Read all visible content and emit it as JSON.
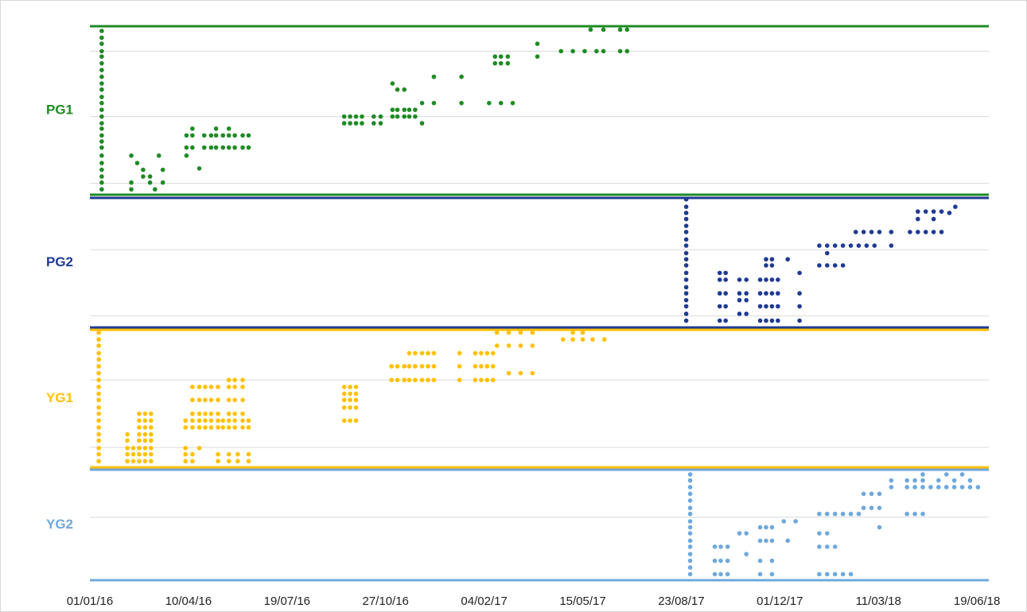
{
  "chart_data": {
    "type": "scatter",
    "xlim": [
      0,
      912
    ],
    "xticks": [
      {
        "value": 0,
        "label": "01/01/16"
      },
      {
        "value": 100,
        "label": "10/04/16"
      },
      {
        "value": 200,
        "label": "19/07/16"
      },
      {
        "value": 300,
        "label": "27/10/16"
      },
      {
        "value": 400,
        "label": "04/02/17"
      },
      {
        "value": 500,
        "label": "15/05/17"
      },
      {
        "value": 600,
        "label": "23/08/17"
      },
      {
        "value": 700,
        "label": "01/12/17"
      },
      {
        "value": 800,
        "label": "11/03/18"
      },
      {
        "value": 900,
        "label": "19/06/18"
      }
    ],
    "grid": true,
    "series": [
      {
        "name": "PG1",
        "color": "#1f8b24",
        "ylim": [
          0,
          25
        ],
        "yticks": [
          1.7,
          11.6,
          21.3
        ],
        "x": [
          12,
          12,
          12,
          12,
          12,
          12,
          12,
          12,
          12,
          12,
          12,
          12,
          12,
          12,
          12,
          12,
          12,
          12,
          12,
          12,
          12,
          12,
          12,
          12,
          12,
          42,
          42,
          42,
          54,
          54,
          61,
          61,
          66,
          70,
          74,
          74,
          48,
          98,
          104,
          116,
          123,
          128,
          135,
          141,
          147,
          155,
          161,
          98,
          104,
          116,
          123,
          128,
          135,
          141,
          147,
          155,
          161,
          104,
          128,
          141,
          98,
          111,
          258,
          264,
          270,
          276,
          288,
          295,
          258,
          264,
          270,
          276,
          288,
          295,
          307,
          312,
          319,
          324,
          330,
          307,
          312,
          319,
          324,
          330,
          312,
          319,
          307,
          337,
          337,
          349,
          349,
          377,
          377,
          411,
          417,
          424,
          411,
          417,
          424,
          405,
          417,
          429,
          454,
          454,
          478,
          490,
          502,
          514,
          521,
          538,
          545,
          508,
          521,
          538,
          545
        ],
        "values": [
          0.8,
          1.8,
          2.7,
          3.7,
          4.7,
          5.8,
          7,
          7.9,
          8.8,
          9.8,
          10.6,
          11.6,
          12.6,
          13.6,
          14.5,
          15.6,
          16.5,
          17.5,
          18.5,
          19.5,
          20.5,
          21.3,
          22.4,
          23.3,
          24.3,
          0.8,
          1.8,
          5.8,
          2.7,
          3.7,
          2.7,
          1.8,
          0.8,
          5.8,
          3.7,
          1.8,
          4.7,
          7,
          7,
          7,
          7,
          7,
          7,
          7,
          7,
          7,
          7,
          8.8,
          8.8,
          8.8,
          8.8,
          8.8,
          8.8,
          8.8,
          8.8,
          8.8,
          8.8,
          9.8,
          9.8,
          9.8,
          5.8,
          3.9,
          10.6,
          10.6,
          10.6,
          10.6,
          10.6,
          10.6,
          11.6,
          11.6,
          11.6,
          11.6,
          11.6,
          11.6,
          11.6,
          11.6,
          11.6,
          11.6,
          11.6,
          12.6,
          12.6,
          12.6,
          12.6,
          12.6,
          15.6,
          15.6,
          16.5,
          13.6,
          10.6,
          13.6,
          17.5,
          13.6,
          17.5,
          19.5,
          19.5,
          19.5,
          20.5,
          20.5,
          20.5,
          13.6,
          13.6,
          13.6,
          20.5,
          22.4,
          21.3,
          21.3,
          21.3,
          21.3,
          21.3,
          21.3,
          21.3,
          24.5,
          24.5,
          24.5,
          24.5
        ]
      },
      {
        "name": "PG2",
        "color": "#1f3a93",
        "ylim": [
          0,
          19
        ],
        "yticks": [
          1.7,
          11.4
        ],
        "x": [
          605,
          605,
          605,
          605,
          605,
          605,
          605,
          605,
          605,
          605,
          605,
          605,
          605,
          605,
          605,
          605,
          605,
          605,
          605,
          639,
          645,
          639,
          645,
          639,
          645,
          639,
          645,
          639,
          645,
          659,
          666,
          659,
          666,
          659,
          666,
          659,
          666,
          680,
          686,
          692,
          698,
          680,
          686,
          692,
          698,
          680,
          686,
          692,
          698,
          680,
          686,
          692,
          698,
          686,
          692,
          686,
          692,
          708,
          720,
          720,
          720,
          720,
          740,
          748,
          756,
          764,
          748,
          740,
          748,
          756,
          764,
          772,
          780,
          788,
          796,
          777,
          785,
          793,
          801,
          813,
          813,
          832,
          840,
          848,
          856,
          864,
          840,
          856,
          840,
          848,
          856,
          864,
          872,
          878
        ],
        "values": [
          1,
          2,
          3.1,
          4,
          5,
          5.9,
          7,
          8,
          9.1,
          10,
          10.9,
          12,
          12.9,
          14,
          14.9,
          15.9,
          16.8,
          17.7,
          18.8,
          1,
          1,
          3.1,
          3.1,
          5,
          5,
          7,
          7,
          8,
          8,
          2,
          2,
          4,
          4,
          5,
          5,
          7,
          7,
          1,
          1,
          1,
          1,
          3.1,
          3.1,
          3.1,
          3.1,
          5,
          5,
          5,
          5,
          7,
          7,
          7,
          7,
          9.1,
          9.1,
          10,
          10,
          10,
          1,
          3.1,
          5,
          8,
          9.1,
          9.1,
          9.1,
          9.1,
          10.9,
          12,
          12,
          12,
          12,
          12,
          12,
          12,
          12,
          14,
          14,
          14,
          14,
          12,
          14,
          14,
          14,
          14,
          14,
          14,
          15.9,
          15.9,
          17,
          17,
          17,
          17,
          16.8,
          17.7
        ]
      },
      {
        "name": "YG1",
        "color": "#ffc000",
        "ylim": [
          0,
          20
        ],
        "yticks": [
          2.9,
          12.7
        ],
        "x": [
          9,
          9,
          9,
          9,
          9,
          9,
          9,
          9,
          9,
          9,
          9,
          9,
          9,
          9,
          9,
          9,
          9,
          9,
          9,
          9,
          38,
          44,
          50,
          56,
          62,
          38,
          44,
          50,
          56,
          62,
          38,
          44,
          50,
          56,
          62,
          38,
          50,
          56,
          62,
          38,
          50,
          56,
          62,
          50,
          56,
          62,
          50,
          56,
          62,
          50,
          56,
          62,
          97,
          104,
          130,
          141,
          150,
          161,
          97,
          104,
          130,
          141,
          150,
          161,
          97,
          111,
          97,
          104,
          111,
          117,
          123,
          130,
          135,
          141,
          147,
          155,
          161,
          97,
          104,
          111,
          117,
          123,
          130,
          135,
          141,
          147,
          155,
          161,
          104,
          111,
          117,
          123,
          130,
          141,
          147,
          155,
          104,
          111,
          117,
          123,
          130,
          141,
          147,
          155,
          104,
          111,
          117,
          123,
          130,
          141,
          147,
          155,
          141,
          147,
          155,
          258,
          264,
          270,
          258,
          264,
          270,
          258,
          264,
          270,
          258,
          264,
          270,
          258,
          264,
          270,
          306,
          312,
          319,
          324,
          330,
          337,
          343,
          349,
          306,
          312,
          319,
          324,
          330,
          337,
          343,
          349,
          324,
          330,
          337,
          343,
          349,
          375,
          391,
          397,
          403,
          409,
          375,
          391,
          397,
          403,
          409,
          375,
          391,
          397,
          403,
          409,
          413,
          425,
          437,
          449,
          413,
          425,
          437,
          449,
          425,
          437,
          449,
          480,
          490,
          500,
          510,
          522,
          490,
          500
        ],
        "values": [
          0.9,
          1.9,
          2.8,
          3.9,
          4.8,
          5.8,
          6.8,
          7.8,
          8.7,
          9.8,
          10.7,
          11.7,
          12.7,
          13.7,
          14.7,
          15.7,
          16.6,
          17.7,
          18.6,
          19.6,
          0.9,
          0.9,
          0.9,
          0.9,
          0.9,
          1.9,
          1.9,
          1.9,
          1.9,
          1.9,
          2.8,
          2.8,
          2.8,
          2.8,
          2.8,
          3.9,
          3.9,
          3.9,
          3.9,
          4.8,
          4.8,
          4.8,
          4.8,
          5.8,
          5.8,
          5.8,
          6.8,
          6.8,
          6.8,
          7.8,
          7.8,
          7.8,
          0.9,
          0.9,
          0.9,
          0.9,
          0.9,
          0.9,
          1.9,
          1.9,
          1.9,
          1.9,
          1.9,
          1.9,
          2.8,
          2.8,
          5.8,
          5.8,
          5.8,
          5.8,
          5.8,
          5.8,
          5.8,
          5.8,
          5.8,
          5.8,
          5.8,
          6.8,
          6.8,
          6.8,
          6.8,
          6.8,
          6.8,
          6.8,
          6.8,
          6.8,
          6.8,
          6.8,
          7.8,
          7.8,
          7.8,
          7.8,
          7.8,
          7.8,
          7.8,
          7.8,
          9.8,
          9.8,
          9.8,
          9.8,
          9.8,
          9.8,
          9.8,
          9.8,
          11.7,
          11.7,
          11.7,
          11.7,
          11.7,
          11.7,
          11.7,
          11.7,
          12.7,
          12.7,
          12.7,
          8.7,
          8.7,
          8.7,
          9.8,
          9.8,
          9.8,
          10.7,
          10.7,
          10.7,
          11.7,
          11.7,
          11.7,
          6.8,
          6.8,
          6.8,
          12.7,
          12.7,
          12.7,
          12.7,
          12.7,
          12.7,
          12.7,
          12.7,
          14.7,
          14.7,
          14.7,
          14.7,
          14.7,
          14.7,
          14.7,
          14.7,
          16.6,
          16.6,
          16.6,
          16.6,
          16.6,
          12.7,
          12.7,
          12.7,
          12.7,
          12.7,
          14.7,
          14.7,
          14.7,
          14.7,
          14.7,
          16.6,
          16.6,
          16.6,
          16.6,
          16.6,
          19.6,
          19.6,
          19.6,
          19.6,
          17.7,
          17.7,
          17.7,
          17.7,
          13.7,
          13.7,
          13.7,
          18.6,
          18.6,
          18.6,
          18.6,
          18.6,
          19.6,
          19.6
        ]
      },
      {
        "name": "YG2",
        "color": "#6fa8dc",
        "ylim": [
          0,
          16.5
        ],
        "yticks": [
          9.4
        ],
        "x": [
          609,
          609,
          609,
          609,
          609,
          609,
          609,
          609,
          609,
          609,
          609,
          609,
          609,
          609,
          609,
          609,
          634,
          640,
          647,
          634,
          640,
          647,
          634,
          640,
          647,
          659,
          666,
          680,
          686,
          692,
          680,
          686,
          692,
          666,
          680,
          692,
          680,
          692,
          704,
          716,
          708,
          740,
          748,
          756,
          764,
          772,
          780,
          740,
          748,
          740,
          748,
          740,
          748,
          756,
          764,
          772,
          756,
          785,
          793,
          801,
          785,
          793,
          801,
          813,
          813,
          801,
          829,
          837,
          845,
          853,
          861,
          869,
          877,
          885,
          893,
          901,
          829,
          837,
          845,
          861,
          877,
          893,
          845,
          869,
          885,
          829,
          837,
          845
        ],
        "values": [
          0.9,
          1.9,
          2.9,
          3.9,
          5,
          5.9,
          7,
          7.9,
          8.8,
          9.9,
          10.8,
          11.9,
          12.9,
          13.9,
          14.9,
          15.8,
          0.9,
          0.9,
          0.9,
          2.9,
          2.9,
          2.9,
          5,
          5,
          5,
          7,
          7,
          7.9,
          7.9,
          7.9,
          5.9,
          5.9,
          5.9,
          3.9,
          0.9,
          0.9,
          2.9,
          2.9,
          8.8,
          8.8,
          5.9,
          9.9,
          9.9,
          9.9,
          9.9,
          9.9,
          9.9,
          7,
          7,
          5,
          5,
          0.9,
          0.9,
          0.9,
          0.9,
          0.9,
          5,
          10.8,
          10.8,
          10.8,
          12.9,
          12.9,
          12.9,
          13.9,
          14.9,
          7.9,
          13.9,
          13.9,
          13.9,
          13.9,
          13.9,
          13.9,
          13.9,
          13.9,
          13.9,
          13.9,
          14.9,
          14.9,
          14.9,
          14.9,
          14.9,
          14.9,
          15.8,
          15.8,
          15.8,
          9.9,
          9.9,
          9.9
        ]
      }
    ]
  }
}
